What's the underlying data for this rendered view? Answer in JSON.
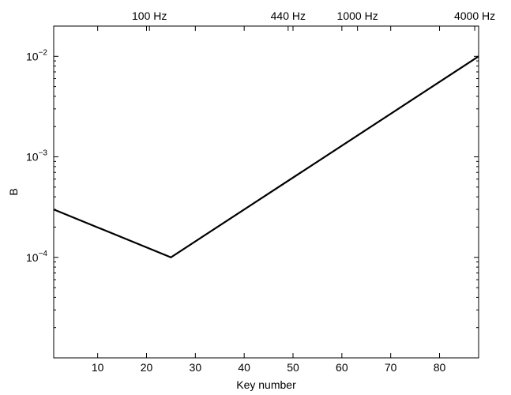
{
  "chart_data": {
    "type": "line",
    "title": "",
    "xlabel": "Key number",
    "ylabel": "B",
    "xlim": [
      1,
      88
    ],
    "ylim": [
      1e-05,
      0.02
    ],
    "yscale": "log",
    "grid": false,
    "xticks": [
      10,
      20,
      30,
      40,
      50,
      60,
      70,
      80
    ],
    "yticks": [
      {
        "value": 0.0001,
        "base": "10",
        "exp": "−4"
      },
      {
        "value": 0.001,
        "base": "10",
        "exp": "−3"
      },
      {
        "value": 0.01,
        "base": "10",
        "exp": "−2"
      }
    ],
    "top_axis_ticks": [
      {
        "key": 20.6,
        "label": "100 Hz"
      },
      {
        "key": 49,
        "label": "440 Hz"
      },
      {
        "key": 63.2,
        "label": "1000 Hz"
      },
      {
        "key": 87.2,
        "label": "4000 Hz"
      }
    ],
    "series": [
      {
        "x": [
          1,
          25,
          88
        ],
        "y": [
          0.0003,
          0.0001,
          0.01
        ],
        "color": "#000000"
      }
    ]
  }
}
